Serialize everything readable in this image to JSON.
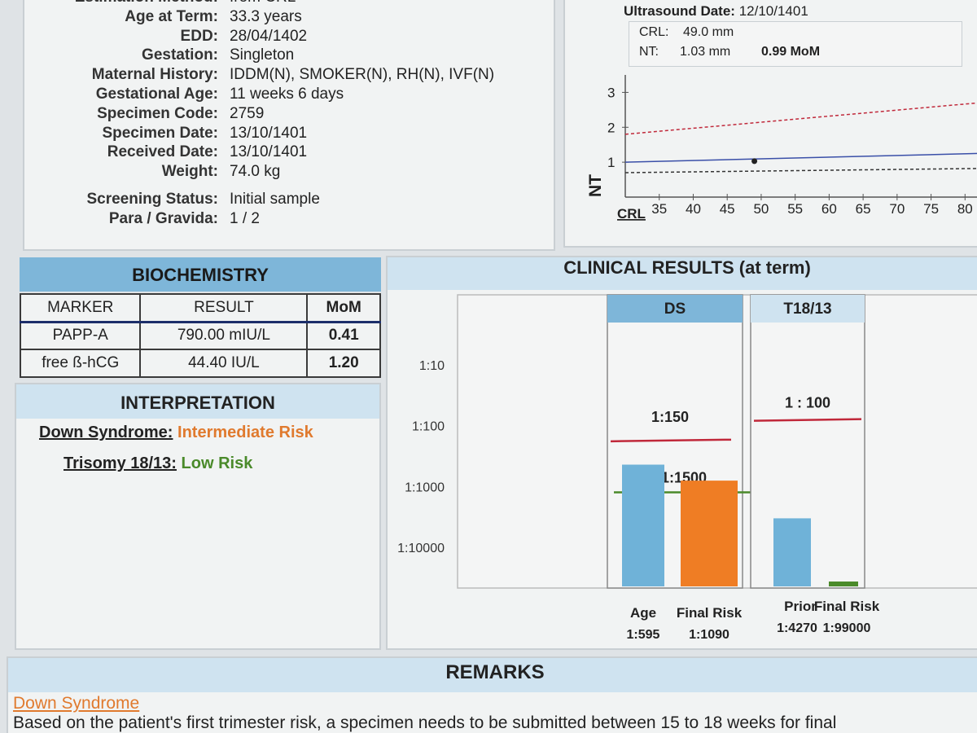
{
  "patient": {
    "rows": [
      {
        "label": "Estimation Method:",
        "value": "from CRL"
      },
      {
        "label": "Age at Term:",
        "value": "33.3 years"
      },
      {
        "label": "EDD:",
        "value": "28/04/1402"
      },
      {
        "label": "Gestation:",
        "value": "Singleton"
      },
      {
        "label": "Maternal History:",
        "value": "IDDM(N), SMOKER(N), RH(N), IVF(N)"
      },
      {
        "label": "Gestational Age:",
        "value": "11 weeks 6 days"
      },
      {
        "label": "Specimen Code:",
        "value": "2759"
      },
      {
        "label": "Specimen Date:",
        "value": "13/10/1401"
      },
      {
        "label": "Received Date:",
        "value": "13/10/1401"
      },
      {
        "label": "Weight:",
        "value": "74.0 kg"
      },
      {
        "label": "Screening Status:",
        "value": "Initial sample"
      },
      {
        "label": "Para / Gravida:",
        "value": "1 / 2"
      }
    ]
  },
  "ultrasound": {
    "date_label": "Ultrasound Date:",
    "date_value": "12/10/1401",
    "crl_label": "CRL:",
    "crl_value": "49.0 mm",
    "nt_label": "NT:",
    "nt_value": "1.03 mm",
    "nt_mom": "0.99 MoM"
  },
  "nt_chart": {
    "y_axis_label": "NT",
    "x_axis_label": "CRL",
    "y_ticks": [
      "1",
      "2",
      "3"
    ],
    "x_ticks": [
      "35",
      "40",
      "45",
      "50",
      "55",
      "60",
      "65",
      "70",
      "75",
      "80"
    ],
    "colors": {
      "median": "#3a4fa8",
      "upper": "#c0283a",
      "lower": "#333333"
    }
  },
  "chart_data": {
    "type": "line",
    "xlabel": "CRL",
    "ylabel": "NT",
    "xlim": [
      30,
      82
    ],
    "ylim": [
      0,
      3.5
    ],
    "series": [
      {
        "x": [
          30,
          82
        ],
        "values": [
          1.8,
          2.7
        ]
      },
      {
        "x": [
          30,
          82
        ],
        "values": [
          1.0,
          1.25
        ]
      },
      {
        "x": [
          30,
          82
        ],
        "values": [
          0.7,
          0.82
        ]
      }
    ],
    "patient_point": {
      "x": 49.0,
      "y": 1.03
    }
  },
  "biochemistry": {
    "title": "BIOCHEMISTRY",
    "headers": [
      "MARKER",
      "RESULT",
      "MoM"
    ],
    "rows": [
      {
        "marker": "PAPP-A",
        "result": "790.00 mIU/L",
        "mom": "0.41"
      },
      {
        "marker": "free ß-hCG",
        "result": "44.40 IU/L",
        "mom": "1.20"
      }
    ]
  },
  "interpretation": {
    "title": "INTERPRETATION",
    "ds_label": "Down Syndrome:",
    "ds_value": "Intermediate Risk",
    "ds_color": "#e07a2e",
    "t18_label": "Trisomy 18/13:",
    "t18_value": "Low Risk",
    "t18_color": "#4a8a2a"
  },
  "clinical": {
    "title": "CLINICAL RESULTS (at term)",
    "risk_axis": [
      "1:10",
      "1:100",
      "1:1000",
      "1:10000"
    ],
    "ds": {
      "title": "DS",
      "cutoff_label": "1:150",
      "secondary_label": "1:1500",
      "bars": [
        {
          "label": "Age",
          "value_label": "1:595",
          "risk": 595,
          "color": "#6fb2d8"
        },
        {
          "label": "Final Risk",
          "value_label": "1:1090",
          "risk": 1090,
          "color": "#ef7d24"
        }
      ]
    },
    "t18": {
      "title": "T18/13",
      "cutoff_label": "1 : 100",
      "bars": [
        {
          "label": "Prior",
          "value_label": "1:4270",
          "risk": 4270,
          "color": "#6fb2d8"
        },
        {
          "label": "Final Risk",
          "value_label": "1:99000",
          "risk": 99000,
          "color": "#4a8a2a"
        }
      ]
    }
  },
  "remarks": {
    "title": "REMARKS",
    "ds_heading": "Down Syndrome",
    "text": "Based on the patient's first trimester risk, a specimen needs to be submitted between 15 to 18 weeks for final"
  }
}
